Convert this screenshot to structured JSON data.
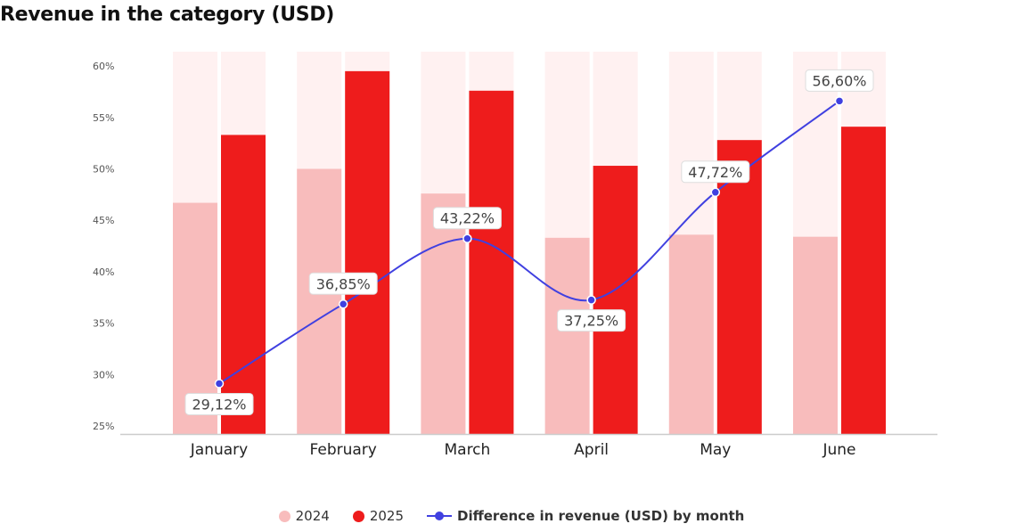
{
  "chart_data": {
    "type": "bar",
    "title": "Revenue in the category (USD)",
    "categories": [
      "January",
      "February",
      "March",
      "April",
      "May",
      "June"
    ],
    "y_ticks": [
      "25%",
      "30%",
      "35%",
      "40%",
      "45%",
      "50%",
      "55%",
      "60%"
    ],
    "ylim": [
      25,
      62
    ],
    "grid": false,
    "legend_position": "bottom",
    "series": [
      {
        "name": "2024",
        "type": "bar",
        "color": "#f8bcbc",
        "values": [
          46.7,
          50.0,
          47.6,
          43.3,
          43.6,
          43.4
        ]
      },
      {
        "name": "2025",
        "type": "bar",
        "color": "#ee1c1c",
        "values": [
          53.3,
          59.5,
          57.6,
          50.3,
          52.8,
          54.1
        ]
      },
      {
        "name": "Difference in revenue (USD) by month",
        "type": "line",
        "color": "#4040e0",
        "values": [
          29.12,
          36.85,
          43.22,
          37.25,
          47.72,
          56.6
        ],
        "labels": [
          "29,12%",
          "36,85%",
          "43,22%",
          "37,25%",
          "47,72%",
          "56,60%"
        ]
      }
    ],
    "background_bar_color": "#fff1f1"
  }
}
